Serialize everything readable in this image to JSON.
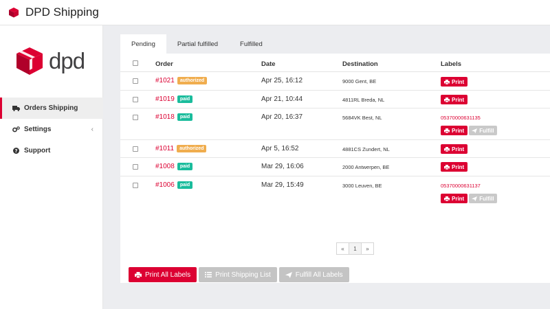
{
  "header": {
    "title": "DPD Shipping"
  },
  "logo": {
    "text": "dpd"
  },
  "sidebar": {
    "items": [
      {
        "label": "Orders Shipping",
        "icon": "truck-icon",
        "active": true
      },
      {
        "label": "Settings",
        "icon": "gears-icon",
        "caret": "‹"
      },
      {
        "label": "Support",
        "icon": "question-circle-icon"
      }
    ]
  },
  "tabs": [
    {
      "label": "Pending",
      "active": true
    },
    {
      "label": "Partial fulfilled"
    },
    {
      "label": "Fulfilled"
    }
  ],
  "table": {
    "headers": {
      "order": "Order",
      "date": "Date",
      "destination": "Destination",
      "labels": "Labels"
    },
    "rows": [
      {
        "order": "#1021",
        "status": "authorized",
        "date": "Apr 25, 16:12",
        "destination": "9000 Gent, BE",
        "print": "Print"
      },
      {
        "order": "#1019",
        "status": "paid",
        "date": "Apr 21, 10:44",
        "destination": "4811RL Breda, NL",
        "print": "Print"
      },
      {
        "order": "#1018",
        "status": "paid",
        "date": "Apr 20, 16:37",
        "destination": "5684VK Best, NL",
        "tracking": "05370000631135",
        "print": "Print",
        "fulfill": "Fulfill"
      },
      {
        "order": "#1011",
        "status": "authorized",
        "date": "Apr 5, 16:52",
        "destination": "4881CS Zundert, NL",
        "print": "Print"
      },
      {
        "order": "#1008",
        "status": "paid",
        "date": "Mar 29, 16:06",
        "destination": "2000 Antwerpen, BE",
        "print": "Print"
      },
      {
        "order": "#1006",
        "status": "paid",
        "date": "Mar 29, 15:49",
        "destination": "3000 Leuven, BE",
        "tracking": "05370000631137",
        "print": "Print",
        "fulfill": "Fulfill"
      }
    ]
  },
  "pagination": {
    "prev": "«",
    "current": "1",
    "next": "»"
  },
  "actions": {
    "print_all": "Print All Labels",
    "print_list": "Print Shipping List",
    "fulfill_all": "Fulfill All Labels"
  },
  "colors": {
    "accent": "#dc0032",
    "paid": "#1abc9c",
    "authorized": "#f0ad4e",
    "disabled": "#c4c4c4",
    "background": "#ecedf0"
  }
}
